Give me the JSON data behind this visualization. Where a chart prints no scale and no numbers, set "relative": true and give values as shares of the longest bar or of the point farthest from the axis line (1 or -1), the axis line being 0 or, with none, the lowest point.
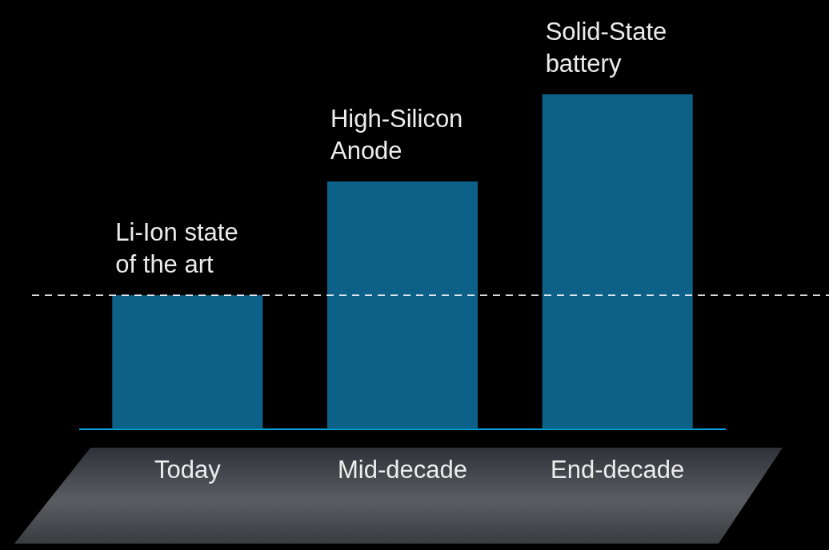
{
  "chart_data": {
    "type": "bar",
    "relative": true,
    "categories": [
      "Today",
      "Mid-decade",
      "End-decade"
    ],
    "values": [
      0.4,
      0.74,
      1
    ],
    "color": "#0d6189",
    "annotations": [
      {
        "text": "Li-Ion state of the art",
        "x": "Today",
        "y": 0.4
      },
      {
        "text": "High-Silicon Anode",
        "x": "Mid-decade",
        "y": 0.74
      },
      {
        "text": "Solid-State battery",
        "x": "End-decade",
        "y": 1
      }
    ],
    "ref_lines": [
      {
        "axis": "y",
        "value": 0.4,
        "color": "#ffffff",
        "line_style": "dashed"
      }
    ]
  }
}
